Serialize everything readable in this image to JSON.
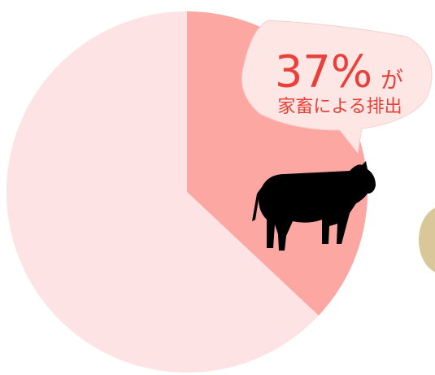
{
  "chart_data": {
    "type": "pie",
    "categories": [
      "家畜による排出",
      null
    ],
    "values": [
      37,
      63
    ],
    "value_labels": [
      "37%",
      null
    ],
    "label_suffix": "が",
    "colors": [
      "#fda7a2",
      "#fde3e3"
    ]
  }
}
